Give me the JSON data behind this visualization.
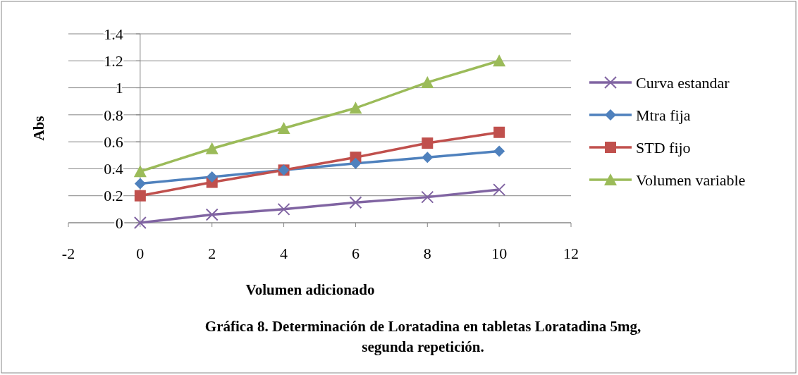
{
  "chart_data": {
    "type": "line",
    "title": "Gráfica 8. Determinación de Loratadina en tabletas Loratadina 5mg,\nsegunda repetición.",
    "xlabel": "Volumen adicionado",
    "ylabel": "Abs",
    "x": [
      0,
      2,
      4,
      6,
      8,
      10
    ],
    "xlim": [
      -2,
      12
    ],
    "xticks": [
      -2,
      0,
      2,
      4,
      6,
      8,
      10,
      12
    ],
    "ylim": [
      0,
      1.4
    ],
    "yticks": [
      0,
      0.2,
      0.4,
      0.6,
      0.8,
      1,
      1.2,
      1.4
    ],
    "grid": "y",
    "legend": "right",
    "series": [
      {
        "name": "Curva estandar",
        "color": "#8064a2",
        "marker": "cross",
        "values": [
          0,
          0.06,
          0.1,
          0.15,
          0.19,
          0.245
        ]
      },
      {
        "name": "Mtra fija",
        "color": "#4f81bd",
        "marker": "diamond",
        "values": [
          0.29,
          0.34,
          0.39,
          0.44,
          0.485,
          0.53
        ]
      },
      {
        "name": "STD fijo",
        "color": "#c0504d",
        "marker": "square",
        "values": [
          0.2,
          0.3,
          0.39,
          0.485,
          0.59,
          0.67
        ]
      },
      {
        "name": "Volumen variable",
        "color": "#9bbb59",
        "marker": "triangle",
        "values": [
          0.38,
          0.55,
          0.7,
          0.85,
          1.04,
          1.2
        ]
      }
    ]
  }
}
